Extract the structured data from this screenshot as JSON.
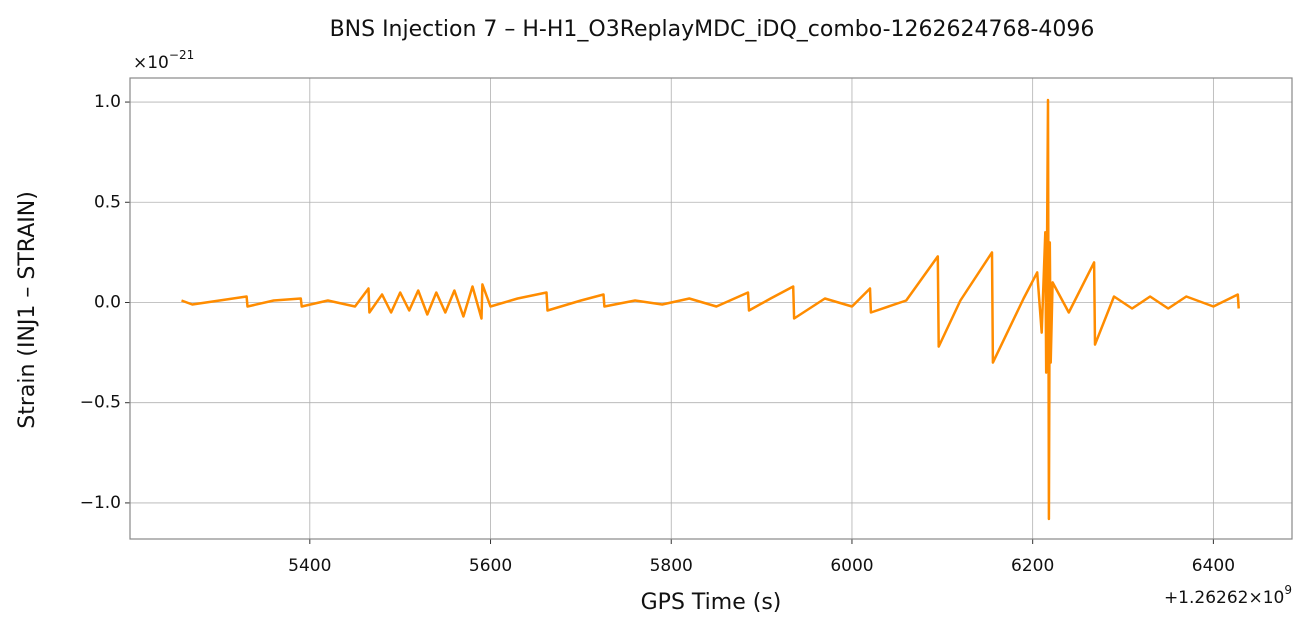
{
  "chart_data": {
    "type": "line",
    "title": "BNS Injection 7 – H-H1_O3ReplayMDC_iDQ_combo-1262624768-4096",
    "x_label": "GPS Time (s)",
    "y_label": "Strain (INJ1 – STRAIN)",
    "y_multiplier": {
      "base": "×10",
      "exponent": "−21"
    },
    "x_offset": {
      "base": "+1.26262×10",
      "exponent": "9"
    },
    "xlim": [
      5201,
      6487
    ],
    "ylim": [
      -1.18,
      1.12
    ],
    "xticks": [
      5400,
      5600,
      5800,
      6000,
      6200,
      6400
    ],
    "yticks": [
      {
        "value": -1.0,
        "label": "−1.0"
      },
      {
        "value": -0.5,
        "label": "−0.5"
      },
      {
        "value": 0,
        "label": "0.0"
      },
      {
        "value": 0.5,
        "label": "0.5"
      },
      {
        "value": 1.0,
        "label": "1.0"
      }
    ],
    "grid": true,
    "series": [
      {
        "color": "#ff8c00",
        "x": [
          5258,
          5270,
          5300,
          5330,
          5331,
          5360,
          5390,
          5391,
          5420,
          5450,
          5465,
          5466,
          5480,
          5490,
          5500,
          5510,
          5520,
          5530,
          5540,
          5550,
          5560,
          5570,
          5580,
          5590,
          5591,
          5600,
          5630,
          5662,
          5663,
          5700,
          5725,
          5726,
          5760,
          5790,
          5820,
          5850,
          5885,
          5886,
          5910,
          5935,
          5936,
          5970,
          6000,
          6020,
          6021,
          6060,
          6095,
          6096,
          6120,
          6155,
          6156,
          6190,
          6205,
          6210,
          6214,
          6215,
          6217,
          6218,
          6219,
          6220,
          6222,
          6240,
          6268,
          6269,
          6290,
          6310,
          6330,
          6350,
          6370,
          6400,
          6427,
          6428
        ],
        "values": [
          0.01,
          -0.01,
          0.01,
          0.03,
          -0.02,
          0.01,
          0.02,
          -0.02,
          0.01,
          -0.02,
          0.07,
          -0.05,
          0.04,
          -0.05,
          0.05,
          -0.04,
          0.06,
          -0.06,
          0.05,
          -0.05,
          0.06,
          -0.07,
          0.08,
          -0.08,
          0.09,
          -0.02,
          0.02,
          0.05,
          -0.04,
          0.01,
          0.04,
          -0.02,
          0.01,
          -0.01,
          0.02,
          -0.02,
          0.05,
          -0.04,
          0.02,
          0.08,
          -0.08,
          0.02,
          -0.02,
          0.07,
          -0.05,
          0.01,
          0.23,
          -0.22,
          0.01,
          0.25,
          -0.3,
          0.02,
          0.15,
          -0.15,
          0.35,
          -0.35,
          1.01,
          -1.08,
          0.3,
          -0.3,
          0.1,
          -0.05,
          0.2,
          -0.21,
          0.03,
          -0.03,
          0.03,
          -0.03,
          0.03,
          -0.02,
          0.04,
          -0.03
        ]
      }
    ]
  }
}
